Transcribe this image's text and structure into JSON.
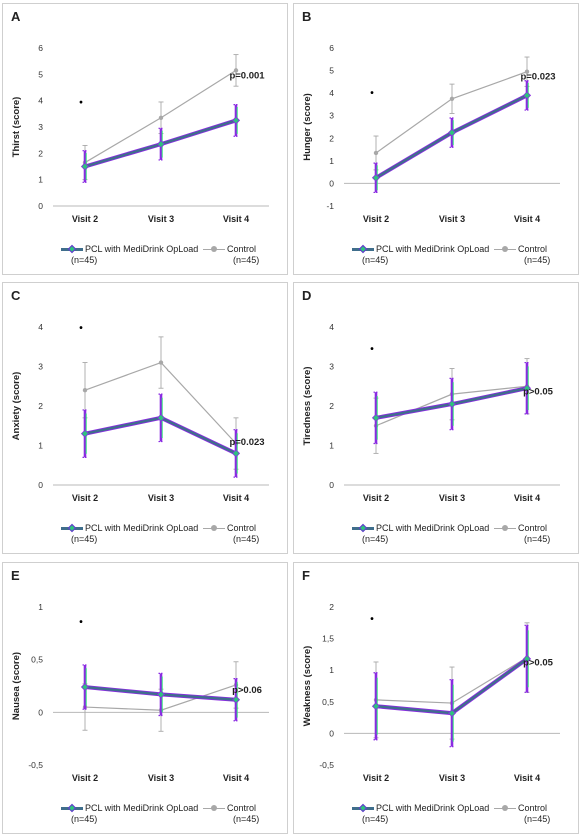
{
  "series_names": [
    "PCL with MediDrink OpLoad",
    "Control"
  ],
  "group_n": [
    "(n=45)",
    "(n=45)"
  ],
  "colors": {
    "pcl_line": "#3f6e8c",
    "pcl_marker": "#2ec27e",
    "pcl_error_green": "#2ee07a",
    "pcl_error_purple": "#8a2be2",
    "control": "#a8a8a8"
  },
  "chart_data": [
    {
      "letter": "A",
      "type": "line",
      "ylabel": "Thirst (score)",
      "categories": [
        "Visit 2",
        "Visit 3",
        "Visit 4"
      ],
      "ylim": [
        0,
        6
      ],
      "yticks": [
        0,
        1,
        2,
        3,
        4,
        5,
        6
      ],
      "ytick_labels": [
        "0",
        "1",
        "2",
        "3",
        "4",
        "5",
        "6"
      ],
      "annotation": "p=0.001",
      "annotation_pos": "near-visit-4",
      "star": "•",
      "star_visit": 0,
      "series": [
        {
          "name": "PCL with MediDrink OpLoad",
          "values": [
            1.5,
            2.35,
            3.25
          ],
          "err": [
            0.6,
            0.6,
            0.6
          ]
        },
        {
          "name": "Control",
          "values": [
            1.65,
            3.35,
            5.15
          ],
          "err": [
            0.65,
            0.6,
            0.6
          ]
        }
      ]
    },
    {
      "letter": "B",
      "type": "line",
      "ylabel": "Hunger (score)",
      "categories": [
        "Visit 2",
        "Visit 3",
        "Visit 4"
      ],
      "ylim": [
        -1,
        6
      ],
      "yticks": [
        -1,
        0,
        1,
        2,
        3,
        4,
        5,
        6
      ],
      "ytick_labels": [
        "-1",
        "0",
        "1",
        "2",
        "3",
        "4",
        "5",
        "6"
      ],
      "annotation": "p=0.023",
      "annotation_pos": "near-visit-4",
      "star": "•",
      "star_visit": 0,
      "series": [
        {
          "name": "PCL with MediDrink OpLoad",
          "values": [
            0.25,
            2.25,
            3.9
          ],
          "err": [
            0.65,
            0.65,
            0.65
          ]
        },
        {
          "name": "Control",
          "values": [
            1.35,
            3.75,
            4.95
          ],
          "err": [
            0.75,
            0.65,
            0.65
          ]
        }
      ]
    },
    {
      "letter": "C",
      "type": "line",
      "ylabel": "Anxiety (score)",
      "categories": [
        "Visit 2",
        "Visit 3",
        "Visit 4"
      ],
      "ylim": [
        0,
        4
      ],
      "yticks": [
        0,
        1,
        2,
        3,
        4
      ],
      "ytick_labels": [
        "0",
        "1",
        "2",
        "3",
        "4"
      ],
      "annotation": "p=0.023",
      "annotation_pos": "near-visit-4",
      "star": "•",
      "star_visit": 0,
      "series": [
        {
          "name": "PCL with MediDrink OpLoad",
          "values": [
            1.3,
            1.7,
            0.8
          ],
          "err": [
            0.6,
            0.6,
            0.6
          ]
        },
        {
          "name": "Control",
          "values": [
            2.4,
            3.1,
            1.05
          ],
          "err": [
            0.7,
            0.65,
            0.65
          ]
        }
      ]
    },
    {
      "letter": "D",
      "type": "line",
      "ylabel": "Tiredness (score)",
      "categories": [
        "Visit 2",
        "Visit 3",
        "Visit 4"
      ],
      "ylim": [
        0,
        4
      ],
      "yticks": [
        0,
        1,
        2,
        3,
        4
      ],
      "ytick_labels": [
        "0",
        "1",
        "2",
        "3",
        "4"
      ],
      "annotation": "p>0.05",
      "annotation_pos": "near-visit-4",
      "star": "•",
      "star_visit": 0,
      "series": [
        {
          "name": "PCL with MediDrink OpLoad",
          "values": [
            1.7,
            2.05,
            2.45
          ],
          "err": [
            0.65,
            0.65,
            0.65
          ]
        },
        {
          "name": "Control",
          "values": [
            1.5,
            2.3,
            2.5
          ],
          "err": [
            0.7,
            0.65,
            0.7
          ]
        }
      ]
    },
    {
      "letter": "E",
      "type": "line",
      "ylabel": "Nausea (score)",
      "categories": [
        "Visit 2",
        "Visit 3",
        "Visit 4"
      ],
      "ylim": [
        -0.5,
        1
      ],
      "yticks": [
        -0.5,
        0,
        0.5,
        1
      ],
      "ytick_labels": [
        "-0,5",
        "0",
        "0,5",
        "1"
      ],
      "annotation": "p>0.06",
      "annotation_pos": "near-visit-4",
      "star": "•",
      "star_visit": 0,
      "series": [
        {
          "name": "PCL with MediDrink OpLoad",
          "values": [
            0.24,
            0.17,
            0.12
          ],
          "err": [
            0.21,
            0.2,
            0.2
          ]
        },
        {
          "name": "Control",
          "values": [
            0.05,
            0.02,
            0.26
          ],
          "err": [
            0.22,
            0.2,
            0.22
          ]
        }
      ]
    },
    {
      "letter": "F",
      "type": "line",
      "ylabel": "Weakness (score)",
      "categories": [
        "Visit 2",
        "Visit 3",
        "Visit 4"
      ],
      "ylim": [
        -0.5,
        2
      ],
      "yticks": [
        -0.5,
        0,
        0.5,
        1,
        1.5,
        2
      ],
      "ytick_labels": [
        "-0,5",
        "0",
        "0,5",
        "1",
        "1,5",
        "2"
      ],
      "annotation": "p>0.05",
      "annotation_pos": "near-visit-4",
      "star": "•",
      "star_visit": 0,
      "series": [
        {
          "name": "PCL with MediDrink OpLoad",
          "values": [
            0.43,
            0.32,
            1.18
          ],
          "err": [
            0.53,
            0.53,
            0.53
          ]
        },
        {
          "name": "Control",
          "values": [
            0.53,
            0.48,
            1.2
          ],
          "err": [
            0.6,
            0.57,
            0.55
          ]
        }
      ]
    }
  ]
}
